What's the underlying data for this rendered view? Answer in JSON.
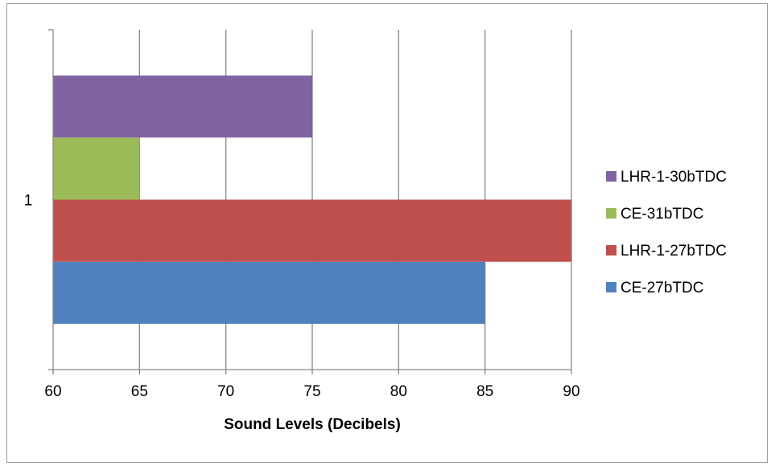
{
  "chart_data": {
    "type": "bar",
    "orientation": "horizontal",
    "categories": [
      "1"
    ],
    "series": [
      {
        "name": "CE-27bTDC",
        "values": [
          85
        ],
        "color": "#4f81bd"
      },
      {
        "name": "LHR-1-27bTDC",
        "values": [
          90
        ],
        "color": "#c0504d"
      },
      {
        "name": "CE-31bTDC",
        "values": [
          65
        ],
        "color": "#9bbb59"
      },
      {
        "name": "LHR-1-30bTDC",
        "values": [
          75
        ],
        "color": "#8064a2"
      }
    ],
    "title": "",
    "xlabel": "Sound Levels (Decibels)",
    "ylabel": "",
    "xlim": [
      60,
      90
    ],
    "xticks": [
      60,
      65,
      70,
      75,
      80,
      85,
      90
    ],
    "grid": "vertical",
    "legend_position": "right",
    "legend_order": [
      "LHR-1-30bTDC",
      "CE-31bTDC",
      "LHR-1-27bTDC",
      "CE-27bTDC"
    ]
  }
}
